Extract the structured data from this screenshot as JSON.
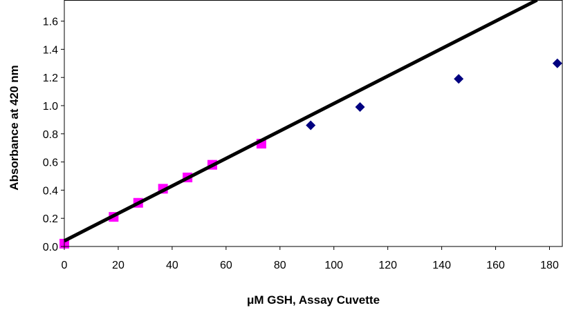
{
  "chart_data": {
    "type": "scatter",
    "xlabel": "μM GSH, Assay Cuvette",
    "ylabel": "Absorbance at 420 nm",
    "xlim": [
      0,
      185
    ],
    "ylim": [
      0,
      1.75
    ],
    "xticks": [
      "0",
      "20",
      "40",
      "60",
      "80",
      "100",
      "120",
      "140",
      "160",
      "180"
    ],
    "yticks": [
      "0.0",
      "0.2",
      "0.4",
      "0.6",
      "0.8",
      "1.0",
      "1.2",
      "1.4",
      "1.6"
    ],
    "grid": false,
    "legend": "none",
    "series": [
      {
        "marker": "diamond",
        "color": "#000080",
        "x": [
          0,
          18.3,
          27.4,
          36.6,
          45.7,
          54.9,
          73.1,
          91.4,
          109.7,
          146.3,
          182.9
        ],
        "y": [
          0.02,
          0.21,
          0.31,
          0.41,
          0.49,
          0.58,
          0.73,
          0.86,
          0.99,
          1.19,
          1.3
        ]
      },
      {
        "marker": "square",
        "color": "#FF00FF",
        "x": [
          0,
          18.3,
          27.4,
          36.6,
          45.7,
          54.9,
          73.1
        ],
        "y": [
          0.02,
          0.21,
          0.31,
          0.41,
          0.49,
          0.58,
          0.73
        ]
      }
    ],
    "trendline": {
      "type": "linear",
      "color": "#000000",
      "slope": 0.00975,
      "intercept": 0.04
    }
  }
}
